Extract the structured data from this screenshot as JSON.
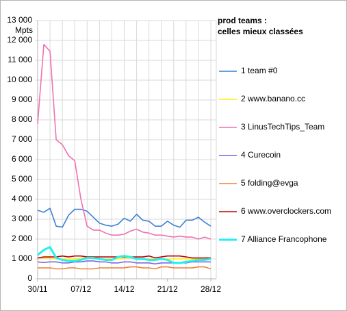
{
  "chart_data": {
    "type": "line",
    "title": "prod teams :",
    "subtitle": "celles mieux classées",
    "y_label": "Mpts",
    "categories": [
      "30/11",
      null,
      null,
      null,
      null,
      null,
      null,
      "07/12",
      null,
      null,
      null,
      null,
      null,
      null,
      "14/12",
      null,
      null,
      null,
      null,
      null,
      null,
      "21/12",
      null,
      null,
      null,
      null,
      null,
      null,
      "28/12"
    ],
    "ylim": [
      0,
      13000
    ],
    "yticks": [
      0,
      {
        "value": 1000,
        "label": "1 000"
      },
      {
        "value": 2000,
        "label": "2 000"
      },
      {
        "value": 3000,
        "label": "3 000"
      },
      {
        "value": 4000,
        "label": "4 000"
      },
      {
        "value": 5000,
        "label": "5 000"
      },
      {
        "value": 6000,
        "label": "6 000"
      },
      {
        "value": 7000,
        "label": "7 000"
      },
      {
        "value": 8000,
        "label": "8 000"
      },
      {
        "value": 9000,
        "label": "9 000"
      },
      {
        "value": 10000,
        "label": "10 000"
      },
      {
        "value": 11000,
        "label": "11 000"
      },
      {
        "value": 12000,
        "label": "12 000"
      },
      {
        "value": 13000,
        "label": "13 000"
      }
    ],
    "grid": true,
    "legend": "right",
    "series": [
      {
        "name": "1 team #0",
        "color": "#3a7fd5",
        "values": [
          3450,
          3350,
          3550,
          2650,
          2600,
          3200,
          3500,
          3500,
          3400,
          3100,
          2800,
          2700,
          2650,
          2750,
          3050,
          2900,
          3250,
          2950,
          2900,
          2650,
          2650,
          2900,
          2700,
          2600,
          2950,
          2950,
          3100,
          2850,
          2650
        ]
      },
      {
        "name": "2 www.banano.cc",
        "color": "#ffee00",
        "values": [
          1050,
          1050,
          1050,
          1000,
          1000,
          1000,
          1000,
          1050,
          1050,
          1000,
          1000,
          1000,
          1000,
          1000,
          1050,
          1050,
          1050,
          1000,
          1000,
          1000,
          1000,
          1000,
          1000,
          1000,
          1000,
          1000,
          1000,
          1050,
          1050
        ]
      },
      {
        "name": "3 LinusTechTips_Team",
        "color": "#f06fb4",
        "values": [
          7800,
          11800,
          11450,
          7000,
          6750,
          6200,
          5950,
          4000,
          2650,
          2450,
          2450,
          2300,
          2200,
          2200,
          2250,
          2400,
          2500,
          2350,
          2300,
          2200,
          2200,
          2150,
          2100,
          2150,
          2100,
          2100,
          2000,
          2100,
          2000
        ]
      },
      {
        "name": "4 Curecoin",
        "color": "#7a67e0",
        "values": [
          850,
          820,
          850,
          850,
          800,
          800,
          850,
          850,
          900,
          900,
          850,
          850,
          800,
          800,
          850,
          850,
          800,
          800,
          800,
          750,
          800,
          800,
          800,
          800,
          800,
          850,
          850,
          850,
          850
        ]
      },
      {
        "name": "5 folding@evga",
        "color": "#e8843e",
        "values": [
          550,
          550,
          550,
          500,
          500,
          550,
          550,
          500,
          500,
          500,
          550,
          550,
          550,
          550,
          550,
          600,
          600,
          550,
          550,
          500,
          600,
          600,
          550,
          550,
          550,
          550,
          600,
          600,
          500
        ]
      },
      {
        "name": "6 www.overclockers.com",
        "color": "#c00000",
        "values": [
          1050,
          1100,
          1100,
          1100,
          1150,
          1100,
          1150,
          1150,
          1100,
          1100,
          1100,
          1100,
          1100,
          1100,
          1100,
          1100,
          1100,
          1100,
          1150,
          1050,
          1100,
          1150,
          1150,
          1150,
          1100,
          1050,
          1050,
          1050,
          1050
        ]
      },
      {
        "name": "7 Alliance Francophone",
        "color": "#22f0f0",
        "values": [
          1200,
          1450,
          1600,
          1050,
          950,
          900,
          900,
          950,
          1050,
          1050,
          1000,
          950,
          950,
          1100,
          1150,
          1100,
          1000,
          1000,
          950,
          950,
          1000,
          950,
          800,
          800,
          850,
          900,
          950,
          950,
          1000
        ]
      }
    ]
  }
}
